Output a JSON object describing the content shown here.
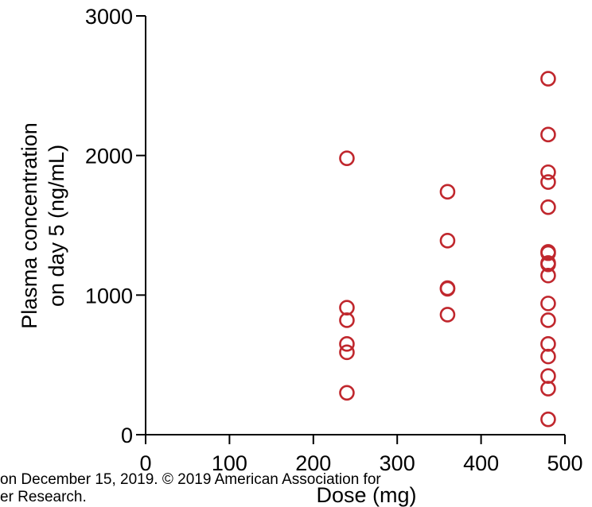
{
  "chart_data": {
    "type": "scatter",
    "xlabel": "Dose (mg)",
    "ylabel_lines": [
      "Plasma concentration",
      "on day 5 (ng/mL)"
    ],
    "xlim": [
      0,
      500
    ],
    "ylim": [
      0,
      3000
    ],
    "xticks": [
      "0",
      "100",
      "200",
      "300",
      "400",
      "500"
    ],
    "yticks": [
      "0",
      "1000",
      "2000",
      "3000"
    ],
    "marker_color": "#c0272d",
    "grid": false,
    "series": [
      {
        "x": [
          240,
          240,
          240,
          240,
          240,
          240,
          360,
          360,
          360,
          360,
          360,
          480,
          480,
          480,
          480,
          480,
          480,
          480,
          480,
          480,
          480,
          480,
          480,
          480,
          480,
          480,
          480,
          480
        ],
        "y": [
          1980,
          910,
          820,
          650,
          590,
          300,
          1740,
          1390,
          1050,
          1045,
          860,
          2550,
          2150,
          1880,
          1810,
          1630,
          1310,
          1230,
          1140,
          940,
          820,
          650,
          560,
          420,
          330,
          110,
          1220,
          1300
        ]
      }
    ]
  },
  "footer": {
    "line1": "on December 15, 2019. © 2019 American Association for",
    "line2": "er Research."
  }
}
